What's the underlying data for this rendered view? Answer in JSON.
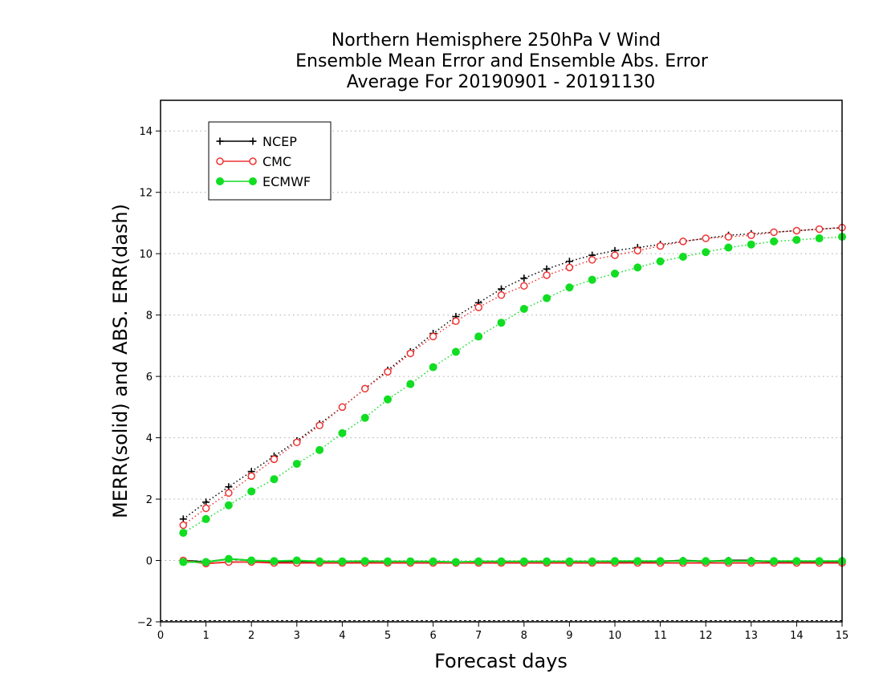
{
  "chart_data": {
    "type": "line",
    "title_lines": [
      "Northern Hemisphere 250hPa V Wind",
      "Ensemble Mean Error and Ensemble Abs. Error",
      "Average For 20190901 - 20191130"
    ],
    "xlabel": "Forecast days",
    "ylabel": "MERR(solid) and ABS. ERR(dash)",
    "xlim": [
      0,
      15
    ],
    "ylim": [
      -2,
      15
    ],
    "xticks": [
      0,
      1,
      2,
      3,
      4,
      5,
      6,
      7,
      8,
      9,
      10,
      11,
      12,
      13,
      14,
      15
    ],
    "yticks": [
      -2,
      0,
      2,
      4,
      6,
      8,
      10,
      12,
      14
    ],
    "grid": "horizontal dotted",
    "legend_position": "top-left",
    "x": [
      0.5,
      1,
      1.5,
      2,
      2.5,
      3,
      3.5,
      4,
      4.5,
      5,
      5.5,
      6,
      6.5,
      7,
      7.5,
      8,
      8.5,
      9,
      9.5,
      10,
      10.5,
      11,
      11.5,
      12,
      12.5,
      13,
      13.5,
      14,
      14.5,
      15
    ],
    "series": [
      {
        "name": "NCEP",
        "color": "#000000",
        "marker": "plus",
        "abs_error": [
          1.35,
          1.9,
          2.4,
          2.9,
          3.4,
          3.9,
          4.45,
          5.0,
          5.6,
          6.2,
          6.8,
          7.4,
          7.95,
          8.4,
          8.85,
          9.2,
          9.5,
          9.75,
          9.95,
          10.1,
          10.2,
          10.3,
          10.4,
          10.5,
          10.6,
          10.65,
          10.7,
          10.75,
          10.8,
          10.85
        ],
        "mean_error": [
          0.0,
          -0.05,
          0.05,
          0.0,
          -0.05,
          -0.02,
          -0.05,
          -0.05,
          -0.05,
          -0.05,
          -0.05,
          -0.05,
          -0.08,
          -0.05,
          -0.05,
          -0.05,
          -0.05,
          -0.05,
          -0.05,
          -0.05,
          -0.05,
          -0.03,
          0.0,
          -0.03,
          0.0,
          0.0,
          -0.05,
          -0.05,
          -0.05,
          -0.05
        ]
      },
      {
        "name": "CMC",
        "color": "#ee3333",
        "marker": "open-circle",
        "abs_error": [
          1.15,
          1.7,
          2.2,
          2.75,
          3.3,
          3.85,
          4.4,
          5.0,
          5.6,
          6.15,
          6.75,
          7.3,
          7.8,
          8.25,
          8.65,
          8.95,
          9.3,
          9.55,
          9.8,
          9.95,
          10.1,
          10.25,
          10.4,
          10.5,
          10.55,
          10.6,
          10.7,
          10.75,
          10.8,
          10.85
        ],
        "mean_error": [
          0.0,
          -0.1,
          -0.05,
          -0.05,
          -0.08,
          -0.08,
          -0.08,
          -0.08,
          -0.08,
          -0.08,
          -0.08,
          -0.08,
          -0.08,
          -0.08,
          -0.08,
          -0.08,
          -0.08,
          -0.08,
          -0.08,
          -0.08,
          -0.08,
          -0.08,
          -0.08,
          -0.08,
          -0.08,
          -0.08,
          -0.08,
          -0.08,
          -0.08,
          -0.08
        ]
      },
      {
        "name": "ECMWF",
        "color": "#11dd22",
        "marker": "filled-circle",
        "abs_error": [
          0.9,
          1.35,
          1.8,
          2.25,
          2.65,
          3.15,
          3.6,
          4.15,
          4.65,
          5.25,
          5.75,
          6.3,
          6.8,
          7.3,
          7.75,
          8.2,
          8.55,
          8.9,
          9.15,
          9.35,
          9.55,
          9.75,
          9.9,
          10.05,
          10.2,
          10.3,
          10.4,
          10.45,
          10.5,
          10.55
        ],
        "mean_error": [
          -0.05,
          -0.05,
          0.05,
          0.0,
          -0.02,
          0.0,
          -0.03,
          -0.03,
          -0.02,
          -0.03,
          -0.03,
          -0.03,
          -0.05,
          -0.03,
          -0.03,
          -0.03,
          -0.03,
          -0.03,
          -0.03,
          -0.02,
          -0.02,
          -0.02,
          -0.02,
          -0.02,
          -0.02,
          -0.02,
          -0.02,
          -0.02,
          -0.02,
          -0.02
        ]
      }
    ]
  }
}
